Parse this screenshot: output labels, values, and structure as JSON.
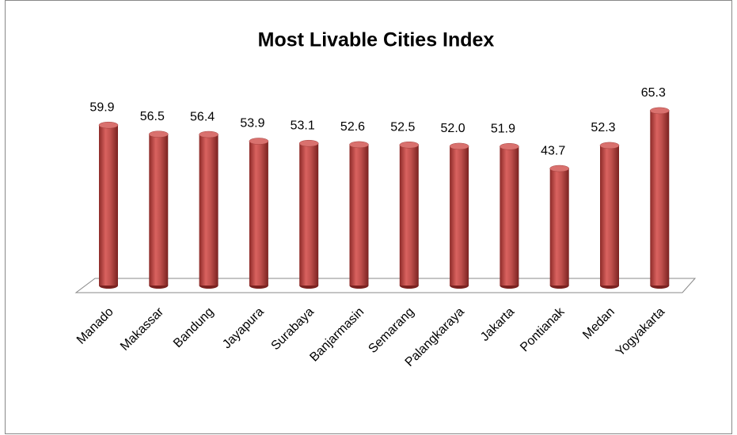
{
  "chart_data": {
    "type": "bar3d",
    "title": "Most Livable Cities Index",
    "categories": [
      "Manado",
      "Makassar",
      "Bandung",
      "Jayapura",
      "Surabaya",
      "Banjarmasin",
      "Semarang",
      "Palangkaraya",
      "Jakarta",
      "Pontianak",
      "Medan",
      "Yogyakarta"
    ],
    "values": [
      59.9,
      56.5,
      56.4,
      53.9,
      53.1,
      52.6,
      52.5,
      52,
      51.9,
      43.7,
      52.3,
      65.3
    ],
    "value_labels": [
      "59.9",
      "56.5",
      "56.4",
      "53.9",
      "53.1",
      "52.6",
      "52.5",
      "52.0",
      "51.9",
      "43.7",
      "52.3",
      "65.3"
    ],
    "color": "#c0504d",
    "ylim": [
      0,
      70
    ]
  }
}
